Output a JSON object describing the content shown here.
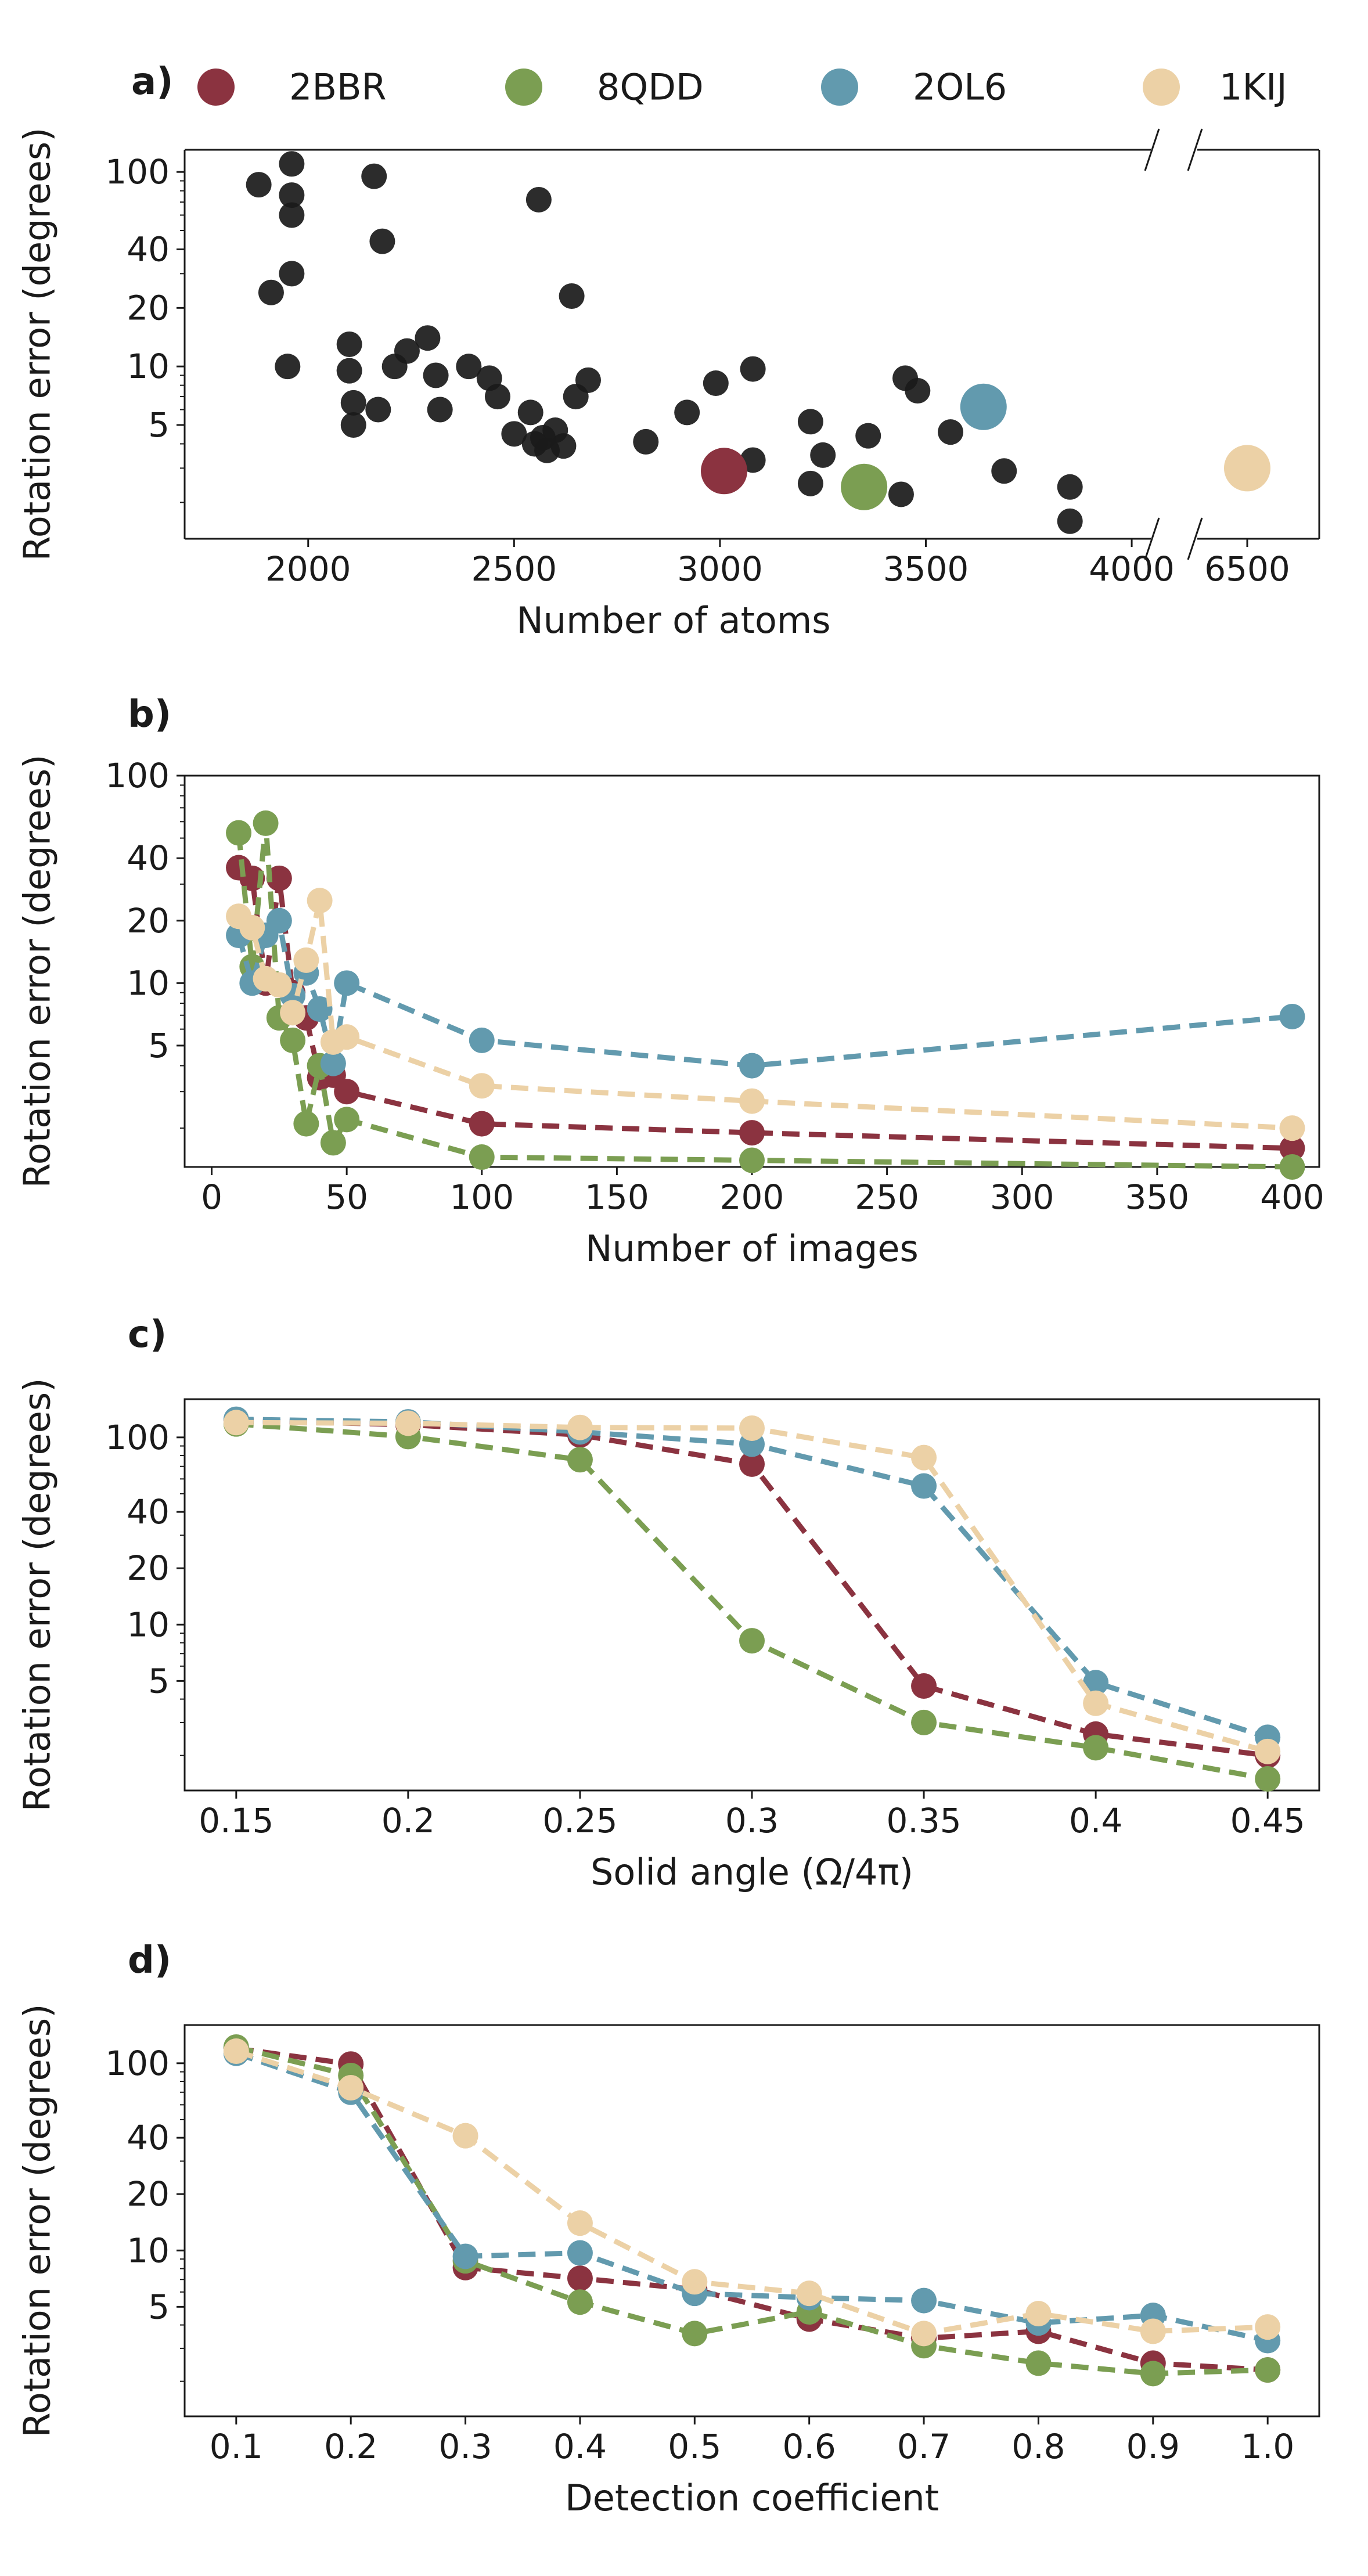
{
  "legend": {
    "items": [
      {
        "name": "2BBR",
        "color": "#8b3340"
      },
      {
        "name": "8QDD",
        "color": "#7b9e52"
      },
      {
        "name": "2OL6",
        "color": "#629aae"
      },
      {
        "name": "1KIJ",
        "color": "#ecd1a6"
      }
    ]
  },
  "chart_data": [
    {
      "panel": "a)",
      "type": "scatter",
      "xlabel": "Number of atoms",
      "ylabel": "Rotation error (degrees)",
      "yscale": "log",
      "ylim": [
        1.3,
        130
      ],
      "yticks": [
        5,
        10,
        20,
        40,
        100
      ],
      "x_segments": [
        {
          "range": [
            1700,
            4100
          ],
          "ticks": [
            2000,
            2500,
            3000,
            3500,
            4000
          ]
        },
        {
          "range": [
            6300,
            6700
          ],
          "ticks": [
            6500
          ]
        }
      ],
      "axis_break": true,
      "background_color": "#1a1a1a",
      "background_points": [
        [
          1880,
          86
        ],
        [
          1960,
          110
        ],
        [
          1960,
          76
        ],
        [
          1960,
          60
        ],
        [
          2160,
          95
        ],
        [
          2560,
          72
        ],
        [
          2180,
          44
        ],
        [
          1910,
          24
        ],
        [
          1960,
          30
        ],
        [
          2640,
          23
        ],
        [
          1950,
          10
        ],
        [
          2100,
          13
        ],
        [
          2100,
          9.5
        ],
        [
          2110,
          6.5
        ],
        [
          2110,
          5
        ],
        [
          2170,
          6
        ],
        [
          2210,
          10
        ],
        [
          2240,
          12
        ],
        [
          2290,
          14
        ],
        [
          2310,
          9
        ],
        [
          2320,
          6
        ],
        [
          2390,
          10
        ],
        [
          2440,
          8.7
        ],
        [
          2460,
          7
        ],
        [
          2500,
          4.5
        ],
        [
          2540,
          5.8
        ],
        [
          2550,
          4
        ],
        [
          2570,
          4.3
        ],
        [
          2580,
          3.7
        ],
        [
          2600,
          4.7
        ],
        [
          2620,
          3.9
        ],
        [
          2650,
          7
        ],
        [
          2680,
          8.5
        ],
        [
          2820,
          4.1
        ],
        [
          2920,
          5.8
        ],
        [
          2990,
          8.2
        ],
        [
          3080,
          9.7
        ],
        [
          3080,
          3.3
        ],
        [
          3220,
          5.2
        ],
        [
          3250,
          3.5
        ],
        [
          3220,
          2.5
        ],
        [
          3360,
          4.4
        ],
        [
          3440,
          2.2
        ],
        [
          3450,
          8.7
        ],
        [
          3480,
          7.5
        ],
        [
          3560,
          4.6
        ],
        [
          3690,
          2.9
        ],
        [
          3850,
          2.4
        ],
        [
          3850,
          1.6
        ]
      ],
      "series": [
        {
          "name": "2BBR",
          "x": [
            3010
          ],
          "y": [
            2.9
          ]
        },
        {
          "name": "8QDD",
          "x": [
            3350
          ],
          "y": [
            2.4
          ]
        },
        {
          "name": "2OL6",
          "x": [
            3640
          ],
          "y": [
            6.2
          ]
        },
        {
          "name": "1KIJ",
          "x": [
            6500
          ],
          "y": [
            3.0
          ]
        }
      ]
    },
    {
      "panel": "b)",
      "type": "line",
      "xlabel": "Number of images",
      "ylabel": "Rotation error (degrees)",
      "yscale": "log",
      "xlim": [
        -10,
        410
      ],
      "ylim": [
        1.3,
        100
      ],
      "xticks": [
        0,
        50,
        100,
        150,
        200,
        250,
        300,
        350,
        400
      ],
      "yticks": [
        5,
        10,
        20,
        40,
        100
      ],
      "x": [
        10,
        15,
        20,
        25,
        30,
        35,
        40,
        45,
        50,
        100,
        200,
        400
      ],
      "series": [
        {
          "name": "2BBR",
          "values": [
            36,
            32,
            10,
            32,
            9,
            6.8,
            3.5,
            3.6,
            3.0,
            2.1,
            1.9,
            1.6
          ]
        },
        {
          "name": "8QDD",
          "values": [
            53,
            12,
            59,
            6.8,
            5.3,
            2.1,
            4.0,
            1.7,
            2.2,
            1.45,
            1.4,
            1.3
          ]
        },
        {
          "name": "2OL6",
          "values": [
            17,
            10,
            17,
            20,
            8.7,
            11.2,
            7.5,
            4.1,
            10,
            5.3,
            4.0,
            6.9
          ]
        },
        {
          "name": "1KIJ",
          "values": [
            21,
            18.5,
            10.5,
            9.8,
            7.2,
            12.9,
            25,
            5.2,
            5.5,
            3.2,
            2.7,
            2.0
          ]
        }
      ]
    },
    {
      "panel": "c)",
      "type": "line",
      "xlabel": "Solid angle (Ω/4π)",
      "ylabel": "Rotation error (degrees)",
      "yscale": "log",
      "xlim": [
        0.135,
        0.465
      ],
      "ylim": [
        1.3,
        160
      ],
      "xticks": [
        0.15,
        0.2,
        0.25,
        0.3,
        0.35,
        0.4,
        0.45
      ],
      "yticks": [
        5,
        10,
        20,
        40,
        100
      ],
      "x": [
        0.15,
        0.2,
        0.25,
        0.3,
        0.35,
        0.4,
        0.45
      ],
      "series": [
        {
          "name": "2BBR",
          "values": [
            123,
            117,
            103,
            72,
            4.7,
            2.6,
            2.0
          ]
        },
        {
          "name": "8QDD",
          "values": [
            118,
            101,
            76,
            8.2,
            3.0,
            2.2,
            1.5
          ]
        },
        {
          "name": "2OL6",
          "values": [
            125,
            121,
            107,
            92,
            55,
            4.9,
            2.5
          ]
        },
        {
          "name": "1KIJ",
          "values": [
            120,
            119,
            113,
            112,
            78,
            3.8,
            2.1
          ]
        }
      ]
    },
    {
      "panel": "d)",
      "type": "line",
      "xlabel": "Detection coefficient",
      "ylabel": "Rotation error (degrees)",
      "yscale": "log",
      "xlim": [
        0.055,
        1.045
      ],
      "ylim": [
        1.3,
        160
      ],
      "xticks": [
        0.1,
        0.2,
        0.3,
        0.4,
        0.5,
        0.6,
        0.7,
        0.8,
        0.9,
        1.0
      ],
      "xtick_labels": [
        "0.1",
        "0.2",
        "0.3",
        "0.4",
        "0.5",
        "0.6",
        "0.7",
        "0.8",
        "0.9",
        "1.0"
      ],
      "yticks": [
        5,
        10,
        20,
        40,
        100
      ],
      "x": [
        0.1,
        0.2,
        0.3,
        0.4,
        0.5,
        0.6,
        0.7,
        0.8,
        0.9,
        1.0
      ],
      "series": [
        {
          "name": "2BBR",
          "values": [
            120,
            99,
            8.1,
            7.1,
            6.2,
            4.3,
            3.4,
            3.7,
            2.5,
            2.3
          ]
        },
        {
          "name": "8QDD",
          "values": [
            122,
            86,
            8.8,
            5.3,
            3.6,
            4.7,
            3.1,
            2.5,
            2.2,
            2.3
          ]
        },
        {
          "name": "2OL6",
          "values": [
            113,
            70,
            9.3,
            9.7,
            5.9,
            5.6,
            5.4,
            4.1,
            4.5,
            3.3
          ]
        },
        {
          "name": "1KIJ",
          "values": [
            116,
            74,
            41,
            14,
            6.8,
            5.9,
            3.6,
            4.6,
            3.7,
            3.9
          ]
        }
      ]
    }
  ]
}
